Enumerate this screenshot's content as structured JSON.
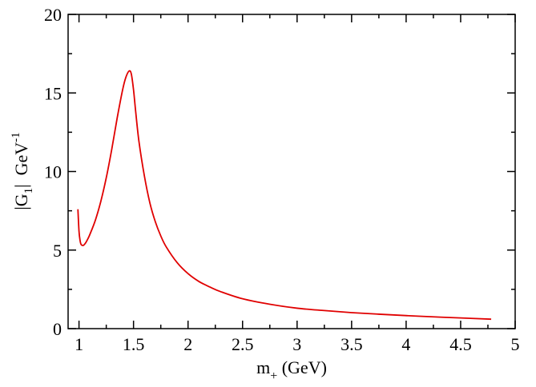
{
  "chart_data": {
    "type": "line",
    "title": "",
    "xlabel": {
      "main": "m",
      "sub": "+",
      "unit": " (GeV)"
    },
    "ylabel": {
      "pre": "|G",
      "sub": "1",
      "mid": "|  GeV",
      "sup": "-1"
    },
    "xlim": [
      0.9,
      5
    ],
    "ylim": [
      0,
      20
    ],
    "xticks": [
      1,
      1.5,
      2,
      2.5,
      3,
      3.5,
      4,
      4.5,
      5
    ],
    "xtick_labels": [
      "1",
      "1.5",
      "2",
      "2.5",
      "3",
      "3.5",
      "4",
      "4.5",
      "5"
    ],
    "yticks": [
      0,
      5,
      10,
      15,
      20
    ],
    "ytick_labels": [
      "0",
      "5",
      "10",
      "15",
      "20"
    ],
    "grid": false,
    "series": [
      {
        "color": "#e00000",
        "x": [
          0.99,
          1.0,
          1.01,
          1.02,
          1.04,
          1.06,
          1.08,
          1.1,
          1.15,
          1.2,
          1.25,
          1.3,
          1.35,
          1.4,
          1.43,
          1.46,
          1.48,
          1.5,
          1.52,
          1.55,
          1.6,
          1.65,
          1.7,
          1.75,
          1.8,
          1.9,
          2.0,
          2.1,
          2.2,
          2.3,
          2.5,
          2.75,
          3.0,
          3.25,
          3.5,
          3.75,
          4.0,
          4.25,
          4.5,
          4.78
        ],
        "y": [
          7.6,
          6.2,
          5.6,
          5.35,
          5.3,
          5.45,
          5.7,
          6.0,
          6.9,
          8.1,
          9.6,
          11.4,
          13.4,
          15.2,
          16.0,
          16.4,
          16.2,
          15.2,
          13.8,
          11.9,
          9.7,
          8.0,
          6.8,
          5.9,
          5.2,
          4.2,
          3.5,
          3.0,
          2.65,
          2.35,
          1.9,
          1.55,
          1.3,
          1.15,
          1.02,
          0.92,
          0.83,
          0.75,
          0.68,
          0.6
        ]
      }
    ]
  }
}
